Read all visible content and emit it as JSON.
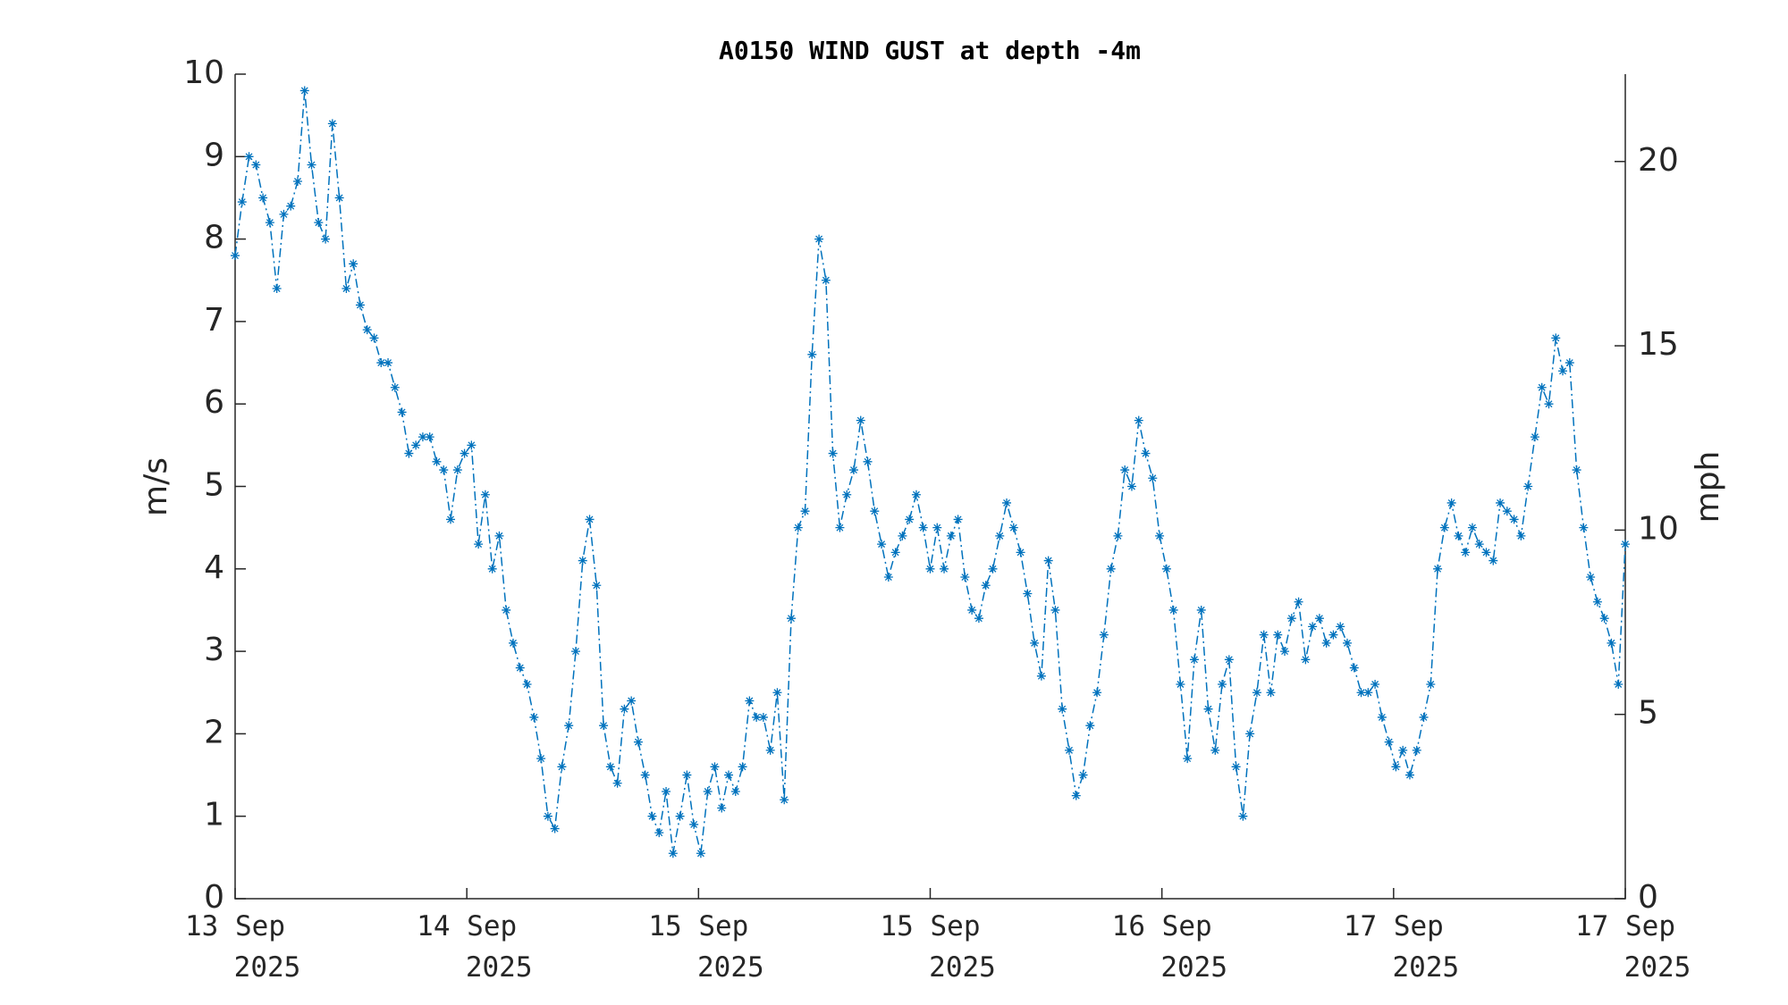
{
  "chart_data": {
    "type": "line",
    "title": "A0150 WIND GUST at depth -4m",
    "ylabel": "m/s",
    "y2label": "mph",
    "color": "#0072bd",
    "marker": "asterisk",
    "linestyle": "dash-dot",
    "xlim": [
      0,
      6
    ],
    "xticks": [
      {
        "value": 0,
        "label": "13 Sep\n2025"
      },
      {
        "value": 1,
        "label": "14 Sep\n2025"
      },
      {
        "value": 2,
        "label": "15 Sep\n2025"
      },
      {
        "value": 3,
        "label": "15 Sep\n2025"
      },
      {
        "value": 4,
        "label": "16 Sep\n2025"
      },
      {
        "value": 5,
        "label": "17 Sep\n2025"
      },
      {
        "value": 6,
        "label": "17 Sep\n2025"
      }
    ],
    "ylim": [
      0,
      10
    ],
    "yticks": [
      0,
      1,
      2,
      3,
      4,
      5,
      6,
      7,
      8,
      9,
      10
    ],
    "y2lim": [
      0,
      22.37
    ],
    "y2ticks": [
      0,
      5,
      10,
      15,
      20
    ],
    "x": [
      0,
      0.03,
      0.06,
      0.09,
      0.12,
      0.15,
      0.18,
      0.21,
      0.24,
      0.27,
      0.3,
      0.33,
      0.36,
      0.39,
      0.42,
      0.45,
      0.48,
      0.51,
      0.54,
      0.57,
      0.6,
      0.63,
      0.66,
      0.69,
      0.72,
      0.75,
      0.78,
      0.81,
      0.84,
      0.87,
      0.9,
      0.93,
      0.96,
      0.99,
      1.02,
      1.05,
      1.08,
      1.11,
      1.14,
      1.17,
      1.2,
      1.23,
      1.26,
      1.29,
      1.32,
      1.35,
      1.38,
      1.41,
      1.44,
      1.47,
      1.5,
      1.53,
      1.56,
      1.59,
      1.62,
      1.65,
      1.68,
      1.71,
      1.74,
      1.77,
      1.8,
      1.83,
      1.86,
      1.89,
      1.92,
      1.95,
      1.98,
      2.01,
      2.04,
      2.07,
      2.1,
      2.13,
      2.16,
      2.19,
      2.22,
      2.25,
      2.28,
      2.31,
      2.34,
      2.37,
      2.4,
      2.43,
      2.46,
      2.49,
      2.52,
      2.55,
      2.58,
      2.61,
      2.64,
      2.67,
      2.7,
      2.73,
      2.76,
      2.79,
      2.82,
      2.85,
      2.88,
      2.91,
      2.94,
      2.97,
      3,
      3.03,
      3.06,
      3.09,
      3.12,
      3.15,
      3.18,
      3.21,
      3.24,
      3.27,
      3.3,
      3.33,
      3.36,
      3.39,
      3.42,
      3.45,
      3.48,
      3.51,
      3.54,
      3.57,
      3.6,
      3.63,
      3.66,
      3.69,
      3.72,
      3.75,
      3.78,
      3.81,
      3.84,
      3.87,
      3.9,
      3.93,
      3.96,
      3.99,
      4.02,
      4.05,
      4.08,
      4.11,
      4.14,
      4.17,
      4.2,
      4.23,
      4.26,
      4.29,
      4.32,
      4.35,
      4.38,
      4.41,
      4.44,
      4.47,
      4.5,
      4.53,
      4.56,
      4.59,
      4.62,
      4.65,
      4.68,
      4.71,
      4.74,
      4.77,
      4.8,
      4.83,
      4.86,
      4.89,
      4.92,
      4.95,
      4.98,
      5.01,
      5.04,
      5.07,
      5.1,
      5.13,
      5.16,
      5.19,
      5.22,
      5.25,
      5.28,
      5.31,
      5.34,
      5.37,
      5.4,
      5.43,
      5.46,
      5.49,
      5.52,
      5.55,
      5.58,
      5.61,
      5.64,
      5.67,
      5.7,
      5.73,
      5.76,
      5.79,
      5.82,
      5.85,
      5.88,
      5.91,
      5.94,
      5.97,
      6
    ],
    "values": [
      7.8,
      8.45,
      9.0,
      8.9,
      8.5,
      8.2,
      7.4,
      8.3,
      8.4,
      8.7,
      9.8,
      8.9,
      8.2,
      8.0,
      9.4,
      8.5,
      7.4,
      7.7,
      7.2,
      6.9,
      6.8,
      6.5,
      6.5,
      6.2,
      5.9,
      5.4,
      5.5,
      5.6,
      5.6,
      5.3,
      5.2,
      4.6,
      5.2,
      5.4,
      5.5,
      4.3,
      4.9,
      4.0,
      4.4,
      3.5,
      3.1,
      2.8,
      2.6,
      2.2,
      1.7,
      1.0,
      0.85,
      1.6,
      2.1,
      3.0,
      4.1,
      4.6,
      3.8,
      2.1,
      1.6,
      1.4,
      2.3,
      2.4,
      1.9,
      1.5,
      1.0,
      0.8,
      1.3,
      0.55,
      1.0,
      1.5,
      0.9,
      0.55,
      1.3,
      1.6,
      1.1,
      1.5,
      1.3,
      1.6,
      2.4,
      2.2,
      2.2,
      1.8,
      2.5,
      1.2,
      3.4,
      4.5,
      4.7,
      6.6,
      8.0,
      7.5,
      5.4,
      4.5,
      4.9,
      5.2,
      5.8,
      5.3,
      4.7,
      4.3,
      3.9,
      4.2,
      4.4,
      4.6,
      4.9,
      4.5,
      4.0,
      4.5,
      4.0,
      4.4,
      4.6,
      3.9,
      3.5,
      3.4,
      3.8,
      4.0,
      4.4,
      4.8,
      4.5,
      4.2,
      3.7,
      3.1,
      2.7,
      4.1,
      3.5,
      2.3,
      1.8,
      1.25,
      1.5,
      2.1,
      2.5,
      3.2,
      4.0,
      4.4,
      5.2,
      5.0,
      5.8,
      5.4,
      5.1,
      4.4,
      4.0,
      3.5,
      2.6,
      1.7,
      2.9,
      3.5,
      2.3,
      1.8,
      2.6,
      2.9,
      1.6,
      1.0,
      2.0,
      2.5,
      3.2,
      2.5,
      3.2,
      3.0,
      3.4,
      3.6,
      2.9,
      3.3,
      3.4,
      3.1,
      3.2,
      3.3,
      3.1,
      2.8,
      2.5,
      2.5,
      2.6,
      2.2,
      1.9,
      1.6,
      1.8,
      1.5,
      1.8,
      2.2,
      2.6,
      4.0,
      4.5,
      4.8,
      4.4,
      4.2,
      4.5,
      4.3,
      4.2,
      4.1,
      4.8,
      4.7,
      4.6,
      4.4,
      5.0,
      5.6,
      6.2,
      6.0,
      6.8,
      6.4,
      6.5,
      5.2,
      4.5,
      3.9,
      3.6,
      3.4,
      3.1,
      2.6,
      4.3
    ]
  }
}
